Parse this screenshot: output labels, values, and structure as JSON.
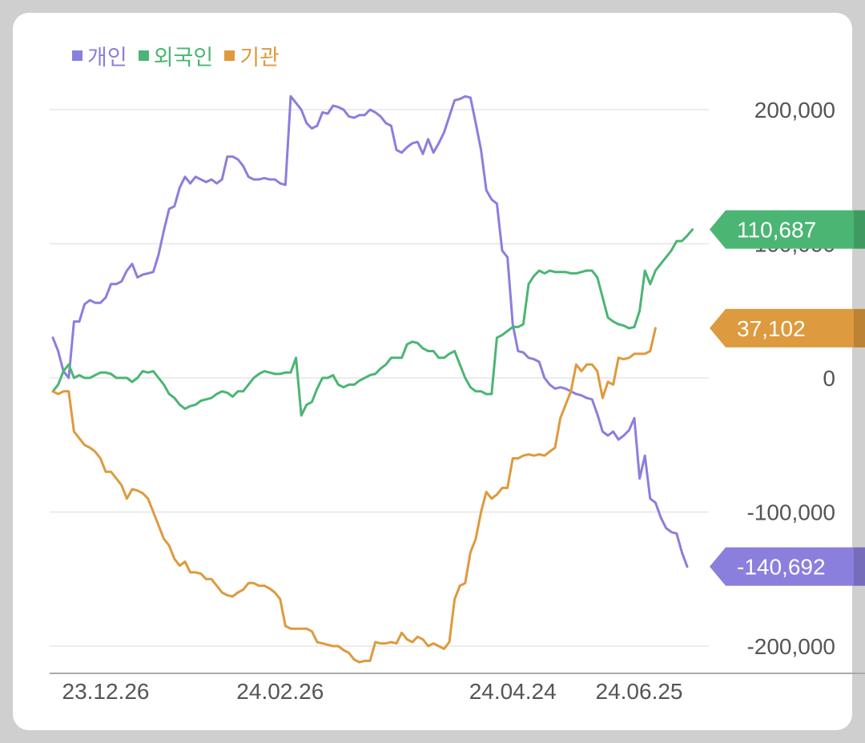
{
  "chart_data": {
    "type": "line",
    "x_ticks": [
      "23.12.26",
      "24.02.26",
      "24.04.24",
      "24.06.25"
    ],
    "y_ticks": [
      "200,000",
      "100,000",
      "0",
      "-100,000",
      "-200,000"
    ],
    "y_tick_values": [
      200000,
      100000,
      0,
      -100000,
      -200000
    ],
    "ylim": [
      -210000,
      215000
    ],
    "grid": true,
    "legend_position": "top-left",
    "series": [
      {
        "name": "개인",
        "color": "#8a7fdc",
        "final_label": "-140,692",
        "values": [
          30000,
          20000,
          5000,
          0,
          42000,
          42000,
          55000,
          58000,
          56000,
          56000,
          60000,
          70000,
          70000,
          72000,
          80000,
          85000,
          75000,
          77000,
          78000,
          79000,
          92000,
          110000,
          126000,
          128000,
          142000,
          150000,
          145000,
          150000,
          148000,
          146000,
          148000,
          145000,
          148000,
          165000,
          165000,
          163000,
          158000,
          150000,
          148000,
          148000,
          149000,
          148000,
          148000,
          145000,
          144000,
          210000,
          205000,
          200000,
          190000,
          186000,
          188000,
          198000,
          197000,
          203000,
          202000,
          200000,
          195000,
          194000,
          196000,
          196000,
          200000,
          198000,
          195000,
          190000,
          188000,
          170000,
          168000,
          172000,
          175000,
          176000,
          167000,
          178000,
          168000,
          175000,
          183000,
          195000,
          207000,
          208000,
          210000,
          209000,
          190000,
          170000,
          140000,
          133000,
          130000,
          95000,
          90000,
          40000,
          20000,
          19000,
          15000,
          14000,
          12000,
          0,
          -5000,
          -8000,
          -7000,
          -8000,
          -10000,
          -12000,
          -13000,
          -15000,
          -16000,
          -27000,
          -40000,
          -43000,
          -40000,
          -46000,
          -43000,
          -39000,
          -30000,
          -75000,
          -58000,
          -90000,
          -93000,
          -104000,
          -112000,
          -115000,
          -116000,
          -130000,
          -140692
        ]
      },
      {
        "name": "외국인",
        "color": "#4bb574",
        "final_label": "110,687",
        "values": [
          -10000,
          -5000,
          5000,
          10000,
          0,
          2000,
          0,
          0,
          2000,
          4000,
          4000,
          3000,
          0,
          0,
          0,
          -3000,
          0,
          5000,
          4000,
          5000,
          0,
          -5000,
          -12000,
          -15000,
          -20000,
          -23000,
          -21000,
          -20000,
          -17000,
          -16000,
          -15000,
          -12000,
          -10000,
          -11000,
          -14000,
          -10000,
          -10000,
          -5000,
          0,
          3000,
          5000,
          4000,
          3000,
          3000,
          4000,
          4000,
          15000,
          -28000,
          -20000,
          -18000,
          -8000,
          0,
          0,
          2000,
          -5000,
          -7000,
          -5000,
          -5000,
          -2000,
          0,
          2000,
          3000,
          7000,
          10000,
          15000,
          15000,
          15000,
          25000,
          27000,
          26000,
          22000,
          20000,
          20000,
          15000,
          15000,
          18000,
          20000,
          10000,
          0,
          -7000,
          -10000,
          -10000,
          -12000,
          -12000,
          30000,
          32000,
          35000,
          38000,
          38000,
          40000,
          70000,
          76000,
          80000,
          78000,
          80000,
          79000,
          79000,
          79000,
          78000,
          78000,
          79000,
          80000,
          80000,
          75000,
          60000,
          45000,
          42000,
          40000,
          39000,
          37000,
          38000,
          50000,
          80000,
          70000,
          80000,
          85000,
          90000,
          95000,
          102000,
          102000,
          106000,
          110687
        ]
      },
      {
        "name": "기관",
        "color": "#dd9a3e",
        "final_label": "37,102",
        "values": [
          -10000,
          -12000,
          -10000,
          -10000,
          -40000,
          -45000,
          -50000,
          -52000,
          -55000,
          -60000,
          -70000,
          -70000,
          -75000,
          -80000,
          -90000,
          -83000,
          -84000,
          -86000,
          -90000,
          -100000,
          -110000,
          -120000,
          -125000,
          -135000,
          -140000,
          -137000,
          -145000,
          -145000,
          -146000,
          -150000,
          -150000,
          -155000,
          -160000,
          -162000,
          -163000,
          -160000,
          -158000,
          -153000,
          -153000,
          -155000,
          -155000,
          -157000,
          -160000,
          -165000,
          -185000,
          -187000,
          -187000,
          -187000,
          -187000,
          -189000,
          -197000,
          -198000,
          -199000,
          -200000,
          -200000,
          -203000,
          -205000,
          -210000,
          -212000,
          -211000,
          -211000,
          -197000,
          -198000,
          -198000,
          -197000,
          -198000,
          -190000,
          -195000,
          -197000,
          -193000,
          -195000,
          -200000,
          -198000,
          -200000,
          -202000,
          -197000,
          -165000,
          -155000,
          -153000,
          -130000,
          -120000,
          -100000,
          -85000,
          -90000,
          -87000,
          -82000,
          -82000,
          -60000,
          -60000,
          -58000,
          -57000,
          -58000,
          -57000,
          -58000,
          -55000,
          -52000,
          -30000,
          -20000,
          -10000,
          10000,
          5000,
          10000,
          10000,
          5000,
          -15000,
          -3000,
          -5000,
          15000,
          14000,
          15000,
          18000,
          18000,
          18000,
          20000,
          37102
        ]
      }
    ]
  }
}
